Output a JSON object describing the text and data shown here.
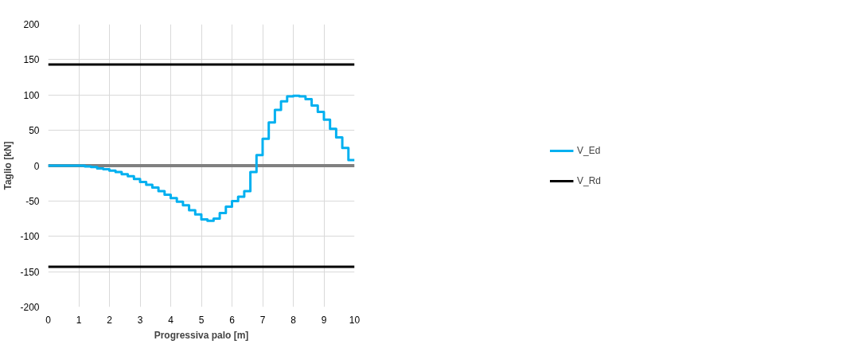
{
  "chart_data": {
    "type": "line",
    "xlabel": "Progressiva palo [m]",
    "ylabel": "Taglio [kN]",
    "xlim": [
      0,
      10
    ],
    "xticks": [
      0,
      1,
      2,
      3,
      4,
      5,
      6,
      7,
      8,
      9,
      10
    ],
    "ylim": [
      -200,
      200
    ],
    "yticks": [
      -200,
      -150,
      -100,
      -50,
      0,
      50,
      100,
      150,
      200
    ],
    "grid": true,
    "legend": "right",
    "marker": "none",
    "line_style": "solid",
    "ref_lines": [
      {
        "axis": "y",
        "value": 0,
        "color": "#808080"
      }
    ],
    "series": [
      {
        "name": "V_Ed",
        "type": "step",
        "color": "#00b0f0",
        "x": [
          0,
          0.2,
          0.4,
          0.6,
          0.8,
          1.0,
          1.2,
          1.4,
          1.6,
          1.8,
          2.0,
          2.2,
          2.4,
          2.6,
          2.8,
          3.0,
          3.2,
          3.4,
          3.6,
          3.8,
          4.0,
          4.2,
          4.4,
          4.6,
          4.8,
          5.0,
          5.2,
          5.4,
          5.6,
          5.8,
          6.0,
          6.2,
          6.4,
          6.6,
          6.8,
          7.0,
          7.2,
          7.4,
          7.6,
          7.8,
          8.0,
          8.2,
          8.4,
          8.6,
          8.8,
          9.0,
          9.2,
          9.4,
          9.6,
          9.8,
          10
        ],
        "values": [
          0,
          0,
          0,
          0,
          0,
          0,
          -1,
          -2,
          -4,
          -5,
          -7,
          -9,
          -12,
          -15,
          -19,
          -23,
          -27,
          -31,
          -36,
          -41,
          -46,
          -51,
          -56,
          -63,
          -69,
          -76,
          -78,
          -75,
          -67,
          -58,
          -50,
          -44,
          -36,
          -9,
          15,
          38,
          61,
          79,
          91,
          98,
          99,
          98,
          94,
          85,
          76,
          65,
          52,
          40,
          25,
          8,
          8
        ]
      },
      {
        "name": "V_Rd",
        "type": "line",
        "color": "#000000",
        "x": [
          0,
          10
        ],
        "values": [
          143,
          143
        ]
      },
      {
        "color": "#000000",
        "x": [
          0,
          10
        ],
        "values": [
          -143,
          -143
        ]
      }
    ]
  }
}
